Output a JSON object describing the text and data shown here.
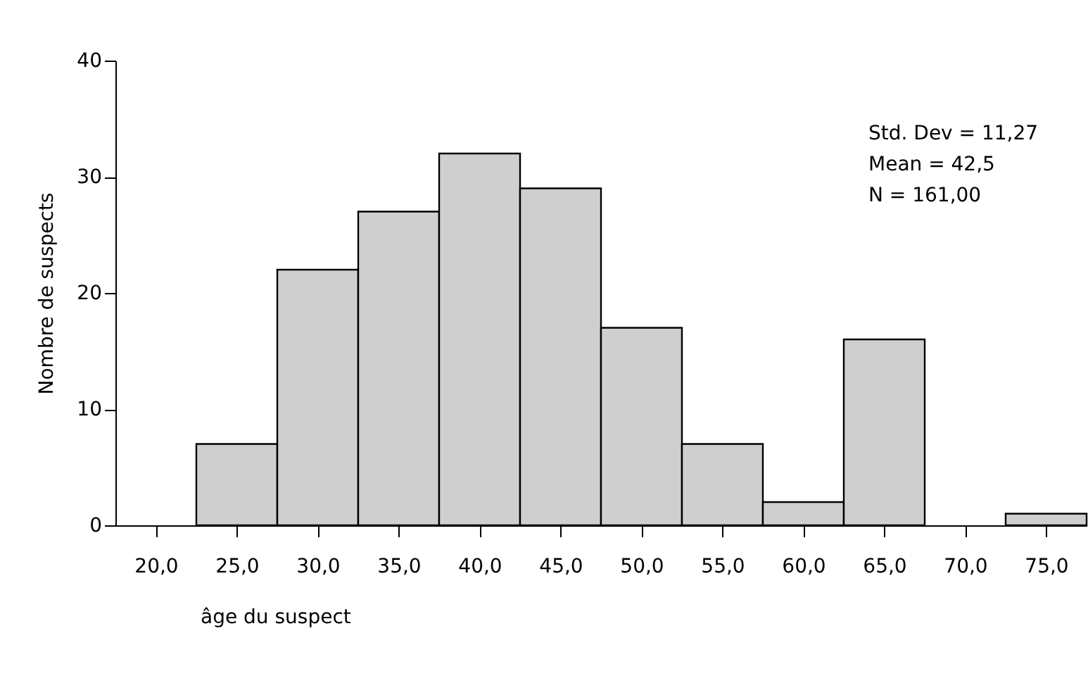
{
  "chart_data": {
    "type": "histogram",
    "xlabel": "âge du suspect",
    "ylabel": "Nombre de suspects",
    "bins": [
      17.5,
      22.5,
      27.5,
      32.5,
      37.5,
      42.5,
      47.5,
      52.5,
      57.5,
      62.5,
      67.5,
      72.5,
      77.5
    ],
    "values": [
      0,
      7,
      22,
      27,
      32,
      29,
      17,
      7,
      2,
      16,
      0,
      1
    ],
    "color": "#cfcfcf",
    "xlim": [
      17.5,
      77.5
    ],
    "xticks": [
      {
        "value": 20,
        "label": "20,0"
      },
      {
        "value": 25,
        "label": "25,0"
      },
      {
        "value": 30,
        "label": "30,0"
      },
      {
        "value": 35,
        "label": "35,0"
      },
      {
        "value": 40,
        "label": "40,0"
      },
      {
        "value": 45,
        "label": "45,0"
      },
      {
        "value": 50,
        "label": "50,0"
      },
      {
        "value": 55,
        "label": "55,0"
      },
      {
        "value": 60,
        "label": "60,0"
      },
      {
        "value": 65,
        "label": "65,0"
      },
      {
        "value": 70,
        "label": "70,0"
      },
      {
        "value": 75,
        "label": "75,0"
      }
    ],
    "ylim": [
      0,
      40
    ],
    "yticks": [
      0,
      10,
      20,
      30,
      40
    ],
    "annotations": [
      "Std. Dev = 11,27",
      "Mean = 42,5",
      "N = 161,00"
    ],
    "grid": false
  }
}
